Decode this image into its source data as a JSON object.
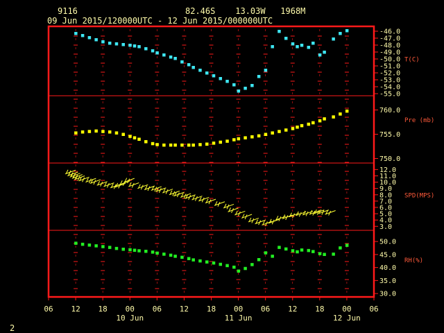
{
  "header": {
    "station": "9116",
    "location": "82.46S    13.03W   1968M",
    "time_range": "09 Jun 2015/120000UTC - 12 Jun 2015/000000UTC"
  },
  "page_number": "2",
  "colors": {
    "frame": "#ff1a1a",
    "text": "#fffbaa",
    "panel_label": "#ff5a3a",
    "temp": "#3ee6f2",
    "pres": "#ffff00",
    "wind": "#ffff33",
    "rh": "#22ee22"
  },
  "chart_data": {
    "type": "scatter",
    "x_axis": {
      "unit": "hours since 09 Jun 00 UTC",
      "range": [
        6,
        78
      ],
      "tick_labels": [
        "06",
        "12",
        "18",
        "00",
        "06",
        "12",
        "18",
        "00",
        "06",
        "12",
        "18",
        "00",
        "06"
      ],
      "date_labels": [
        {
          "text": "10 Jun",
          "at": 24
        },
        {
          "text": "11 Jun",
          "at": 48
        },
        {
          "text": "12 Jun",
          "at": 72
        }
      ]
    },
    "panels": [
      {
        "id": "temp",
        "label": "T(C)",
        "ylim": [
          -55,
          -46
        ],
        "ticks": [
          "-46.0",
          "-47.0",
          "-48.0",
          "-49.0",
          "-50.0",
          "-51.0",
          "-52.0",
          "-53.0",
          "-54.0",
          "-55.0"
        ],
        "tick_values": [
          -46,
          -47,
          -48,
          -49,
          -50,
          -51,
          -52,
          -53,
          -54,
          -55
        ],
        "label_value": -50,
        "x": [
          12,
          13.5,
          15,
          16.5,
          18,
          19.5,
          21,
          22.5,
          24,
          25,
          26,
          27.5,
          29,
          30,
          31.5,
          33,
          34,
          35.5,
          37,
          38,
          39.5,
          41,
          42.5,
          44,
          45.5,
          47,
          48,
          49.5,
          51,
          52.5,
          54,
          55.5,
          57,
          58.5,
          60,
          61,
          62,
          63.5,
          64.5,
          66,
          67,
          69,
          70.5,
          72
        ],
        "y": [
          -46.3,
          -46.6,
          -46.9,
          -47.2,
          -47.5,
          -47.7,
          -47.8,
          -47.9,
          -48.0,
          -48.1,
          -48.2,
          -48.5,
          -48.8,
          -49.1,
          -49.4,
          -49.7,
          -49.9,
          -50.4,
          -50.8,
          -51.2,
          -51.6,
          -52.0,
          -52.4,
          -52.8,
          -53.2,
          -53.7,
          -54.6,
          -54.2,
          -53.8,
          -52.5,
          -51.6,
          -48.2,
          -46.0,
          -47.0,
          -47.8,
          -48.2,
          -48.0,
          -48.3,
          -47.7,
          -49.4,
          -49.0,
          -47.1,
          -46.3,
          -45.9
        ]
      },
      {
        "id": "pres",
        "label": "Pre (mb)",
        "ylim": [
          749.5,
          762.5
        ],
        "ticks": [
          "760.0",
          "755.0",
          "750.0"
        ],
        "tick_values": [
          760,
          755,
          750
        ],
        "label_value": 758,
        "x": [
          12,
          13.5,
          15,
          16.5,
          18,
          19.5,
          21,
          22.5,
          24,
          25,
          26,
          27.5,
          29,
          30,
          31.5,
          33,
          34,
          35.5,
          37,
          38,
          39.5,
          41,
          42.5,
          44,
          45.5,
          47,
          48,
          49.5,
          51,
          52.5,
          54,
          55.5,
          57,
          58.5,
          60,
          61,
          62,
          63.5,
          64.5,
          66,
          67,
          69,
          70.5,
          72
        ],
        "y": [
          755.3,
          755.5,
          755.6,
          755.7,
          755.6,
          755.5,
          755.3,
          755.0,
          754.6,
          754.3,
          754.0,
          753.5,
          753.1,
          752.9,
          752.8,
          752.8,
          752.8,
          752.8,
          752.8,
          752.8,
          752.9,
          753.0,
          753.2,
          753.4,
          753.6,
          753.9,
          754.1,
          754.3,
          754.5,
          754.7,
          755.0,
          755.3,
          755.6,
          755.9,
          756.2,
          756.5,
          756.8,
          757.1,
          757.4,
          757.8,
          758.2,
          758.6,
          759.2,
          759.8
        ]
      },
      {
        "id": "wind",
        "label": "SPD(MPS)",
        "ylim": [
          2.7,
          12.7
        ],
        "ticks": [
          "12.0",
          "11.0",
          "10.0",
          "9.0",
          "8.0",
          "7.0",
          "6.0",
          "5.0",
          "4.0",
          "3.0"
        ],
        "tick_values": [
          12,
          11,
          10,
          9,
          8,
          7,
          6,
          5,
          4,
          3
        ],
        "label_value": 8,
        "x": [
          12,
          12.5,
          13,
          13.5,
          14,
          15,
          16.5,
          17.5,
          19,
          20.5,
          22,
          23,
          24,
          25,
          26,
          28,
          29.5,
          31,
          32,
          33.5,
          35,
          36,
          37.5,
          38.5,
          40,
          41.5,
          43,
          45,
          47,
          48,
          49.5,
          51,
          52.5,
          54,
          55.5,
          57,
          58.5,
          60,
          61.5,
          63,
          64.5,
          66,
          67,
          68,
          69.5
        ],
        "y": [
          11.9,
          11.6,
          11.4,
          11.2,
          11.0,
          10.8,
          10.6,
          10.4,
          10.1,
          9.9,
          9.7,
          9.8,
          10.2,
          10.6,
          9.9,
          9.6,
          9.4,
          9.3,
          9.1,
          8.9,
          8.6,
          8.4,
          8.2,
          8.0,
          7.8,
          7.6,
          7.3,
          6.9,
          6.5,
          5.9,
          5.4,
          4.9,
          4.3,
          4.0,
          3.8,
          4.1,
          4.6,
          4.8,
          5.1,
          5.3,
          5.4,
          5.5,
          5.6,
          5.6,
          5.5
        ]
      },
      {
        "id": "rh",
        "label": "RH(%)",
        "ylim": [
          29.5,
          53.5
        ],
        "ticks": [
          "50.0",
          "45.0",
          "40.0",
          "35.0",
          "30.0"
        ],
        "tick_values": [
          50,
          45,
          40,
          35,
          30
        ],
        "label_value": 43,
        "x": [
          12,
          13.5,
          15,
          16.5,
          18,
          19.5,
          21,
          22.5,
          24,
          25,
          26,
          27.5,
          29,
          30,
          31.5,
          33,
          34,
          35.5,
          37,
          38,
          39.5,
          41,
          42.5,
          44,
          45.5,
          47,
          48,
          49.5,
          51,
          52.5,
          54,
          55.5,
          57,
          58.5,
          60,
          61,
          62,
          63.5,
          64.5,
          66,
          67,
          69,
          70.5,
          72
        ],
        "y": [
          49.4,
          49.0,
          48.7,
          48.4,
          48.1,
          47.8,
          47.4,
          47.1,
          46.9,
          46.7,
          46.5,
          46.3,
          46.0,
          45.6,
          45.2,
          44.8,
          44.4,
          44.0,
          43.5,
          43.0,
          42.6,
          42.2,
          41.8,
          41.3,
          40.8,
          40.2,
          38.7,
          39.7,
          41.2,
          43.1,
          45.7,
          44.4,
          47.8,
          47.2,
          46.5,
          46.1,
          46.8,
          46.6,
          46.2,
          45.4,
          45.1,
          45.2,
          47.6,
          48.6
        ]
      }
    ]
  }
}
